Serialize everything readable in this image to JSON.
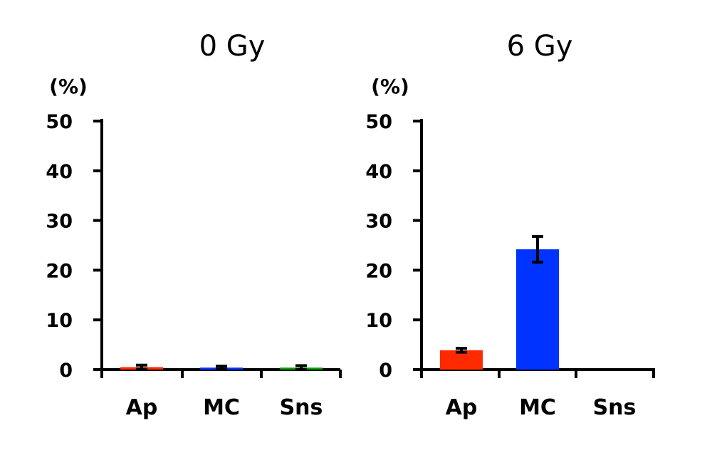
{
  "chart_data": [
    {
      "type": "bar",
      "title": "0 Gy",
      "ylabel": "(%)",
      "xlabel": "",
      "ylim": [
        0,
        50
      ],
      "yticks": [
        0,
        10,
        20,
        30,
        40,
        50
      ],
      "categories": [
        "Ap",
        "MC",
        "Sns"
      ],
      "values": [
        0.5,
        0.4,
        0.4
      ],
      "errors": [
        0.4,
        0.3,
        0.4
      ],
      "colors": [
        "#ff2a00",
        "#0033ff",
        "#00a000"
      ],
      "grid": false
    },
    {
      "type": "bar",
      "title": "6 Gy",
      "ylabel": "(%)",
      "xlabel": "",
      "ylim": [
        0,
        50
      ],
      "yticks": [
        0,
        10,
        20,
        30,
        40,
        50
      ],
      "categories": [
        "Ap",
        "MC",
        "Sns"
      ],
      "values": [
        3.9,
        24.2,
        0
      ],
      "errors": [
        0.4,
        2.6,
        0
      ],
      "colors": [
        "#ff2a00",
        "#0033ff",
        "#00a000"
      ],
      "grid": false
    }
  ]
}
